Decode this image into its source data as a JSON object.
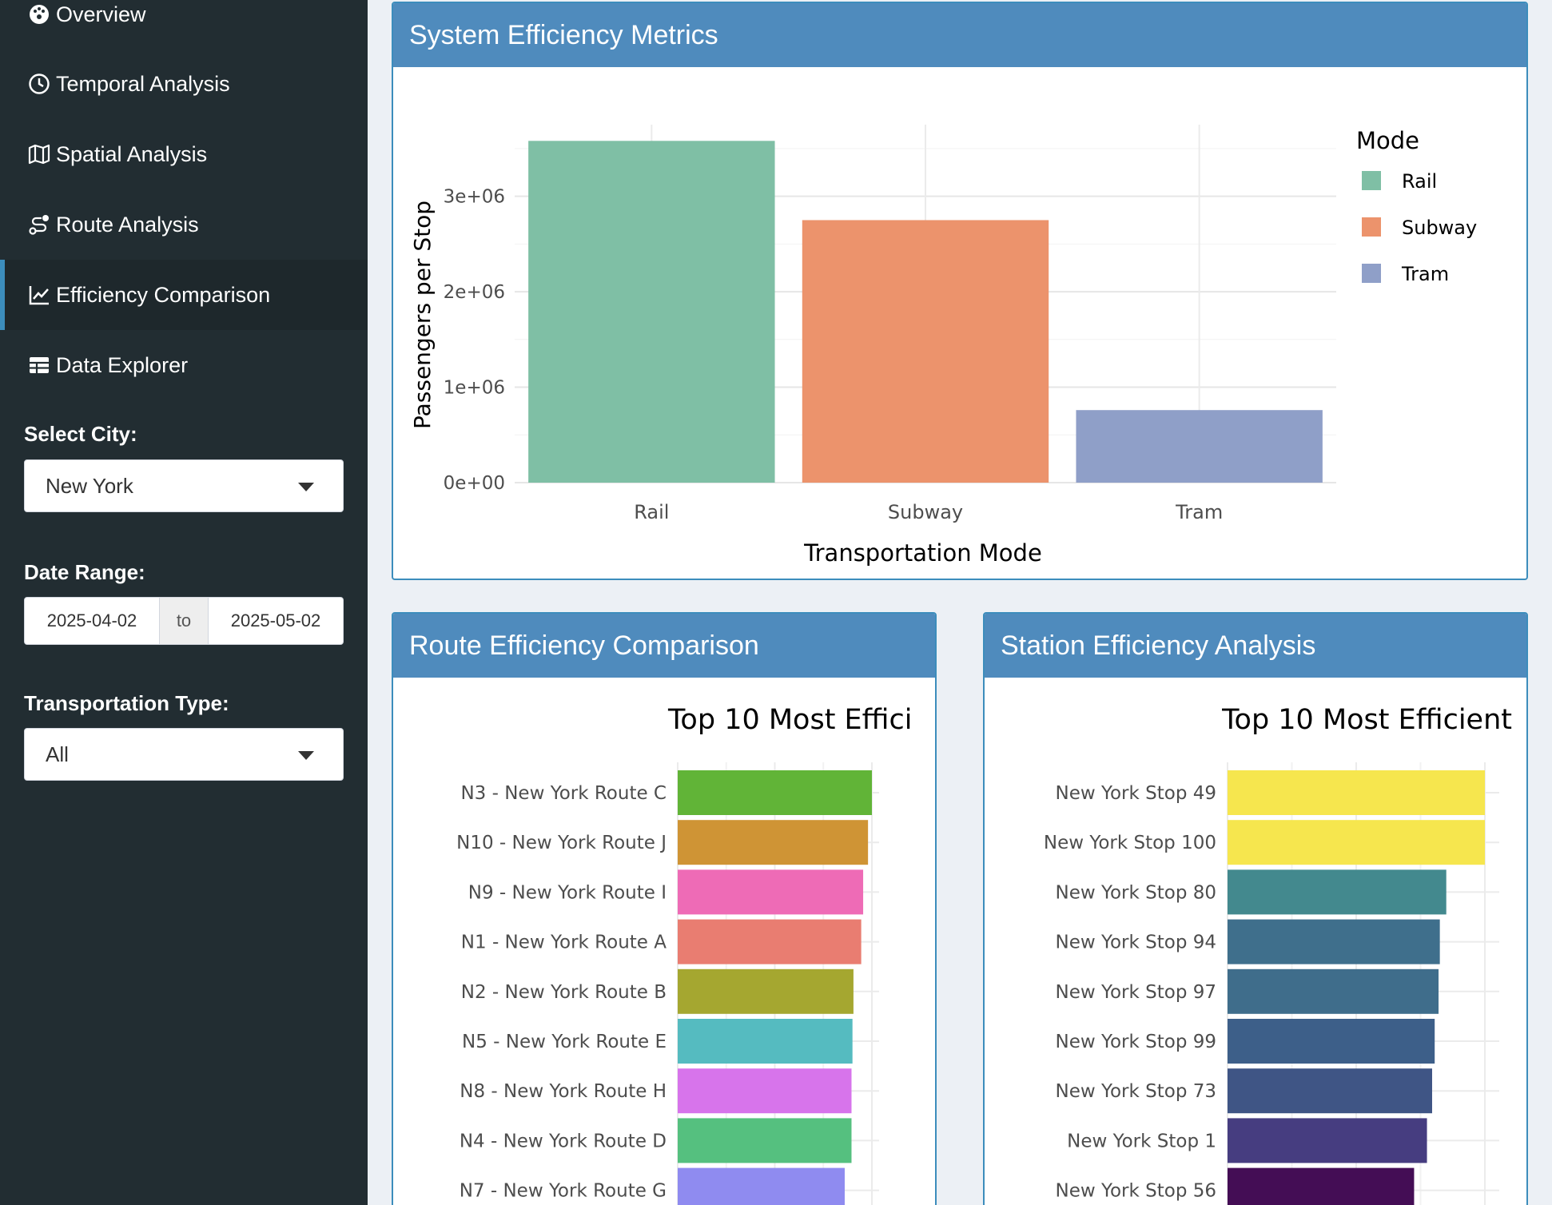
{
  "sidebar": {
    "menu": [
      {
        "label": "Overview",
        "icon": "dashboard-icon"
      },
      {
        "label": "Temporal Analysis",
        "icon": "clock-icon"
      },
      {
        "label": "Spatial Analysis",
        "icon": "map-icon"
      },
      {
        "label": "Route Analysis",
        "icon": "route-icon"
      },
      {
        "label": "Efficiency Comparison",
        "icon": "line-chart-icon",
        "active": true
      },
      {
        "label": "Data Explorer",
        "icon": "table-icon"
      }
    ],
    "city_label": "Select City:",
    "city_value": "New York",
    "date_label": "Date Range:",
    "date_start": "2025-04-02",
    "date_sep": "to",
    "date_end": "2025-05-02",
    "type_label": "Transportation Type:",
    "type_value": "All"
  },
  "boxes": {
    "system_title": "System Efficiency Metrics",
    "route_title": "Route Efficiency Comparison",
    "station_title": "Station Efficiency Analysis"
  },
  "chart_data": [
    {
      "type": "bar",
      "categories": [
        "Rail",
        "Subway",
        "Tram"
      ],
      "values": [
        3580000,
        2750000,
        760000
      ],
      "colors": [
        "#7fbfa5",
        "#ec936c",
        "#8f9fc8"
      ],
      "xlabel": "Transportation Mode",
      "ylabel": "Passengers per Stop",
      "yticks": [
        "0e+00",
        "1e+06",
        "2e+06",
        "3e+06"
      ],
      "ylim": [
        0,
        3750000
      ],
      "legend_title": "Mode",
      "legend": [
        "Rail",
        "Subway",
        "Tram"
      ],
      "legend_position": "right",
      "grid": true
    },
    {
      "type": "bar",
      "orientation": "horizontal",
      "title": "Top 10 Most Effici",
      "categories": [
        "N3 - New York Route C",
        "N10 - New York Route J",
        "N9 - New York Route I",
        "N1 - New York Route A",
        "N2 - New York Route B",
        "N5 - New York Route E",
        "N8 - New York Route H",
        "N4 - New York Route D",
        "N7 - New York Route G"
      ],
      "values": [
        1.0,
        0.98,
        0.955,
        0.945,
        0.905,
        0.9,
        0.895,
        0.895,
        0.86
      ],
      "colors": [
        "#61b437",
        "#cf9435",
        "#ee6bb6",
        "#e97d71",
        "#a5a730",
        "#55bbc0",
        "#d774eb",
        "#55c07f",
        "#8f8bf0"
      ],
      "grid": true
    },
    {
      "type": "bar",
      "orientation": "horizontal",
      "title": "Top 10 Most Efficient",
      "categories": [
        "New York Stop 49",
        "New York Stop 100",
        "New York Stop 80",
        "New York Stop 94",
        "New York Stop 97",
        "New York Stop 99",
        "New York Stop 73",
        "New York Stop 1",
        "New York Stop 56"
      ],
      "values": [
        1.0,
        1.0,
        0.85,
        0.825,
        0.82,
        0.805,
        0.795,
        0.775,
        0.725
      ],
      "colors": [
        "#f6e64e",
        "#f6e64e",
        "#43898e",
        "#3f6f8c",
        "#3f6d8b",
        "#3d5f89",
        "#3f5585",
        "#463d80",
        "#440d55"
      ],
      "grid": true
    }
  ]
}
